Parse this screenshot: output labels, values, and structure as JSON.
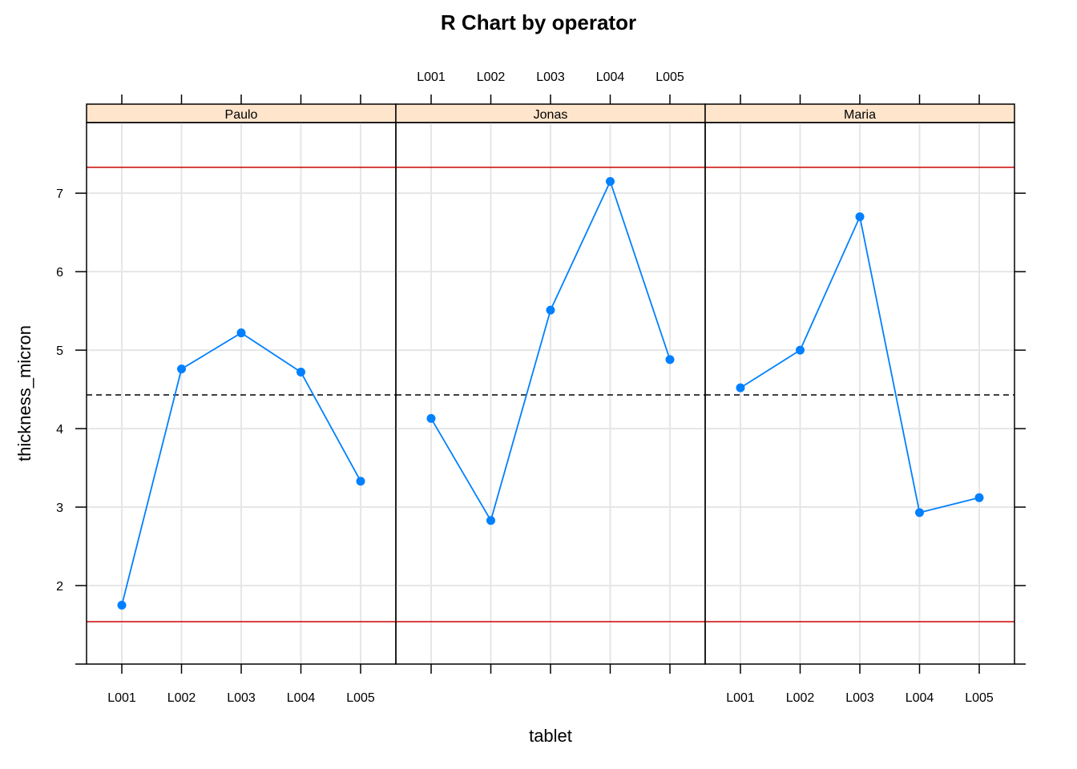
{
  "chart_data": {
    "type": "line",
    "title": "R Chart by operator",
    "xlabel": "tablet",
    "ylabel": "thickness_micron",
    "categories": [
      "L001",
      "L002",
      "L003",
      "L004",
      "L005"
    ],
    "yticks": [
      2,
      3,
      4,
      5,
      6,
      7
    ],
    "ylim": [
      1.0,
      7.9
    ],
    "panels": [
      {
        "name": "Paulo",
        "values": [
          1.75,
          4.76,
          5.22,
          4.72,
          3.33
        ]
      },
      {
        "name": "Jonas",
        "values": [
          4.13,
          2.83,
          5.51,
          7.15,
          4.88
        ]
      },
      {
        "name": "Maria",
        "values": [
          4.52,
          5.0,
          6.7,
          2.93,
          3.12
        ]
      }
    ],
    "center_line": 4.43,
    "ucl": 7.33,
    "lcl": 1.54,
    "grid": true,
    "colors": {
      "series": "#0080ff",
      "limits": "#cc0000",
      "center": "#000000",
      "strip": "#ffe5cc",
      "grid": "#e6e6e6"
    }
  }
}
